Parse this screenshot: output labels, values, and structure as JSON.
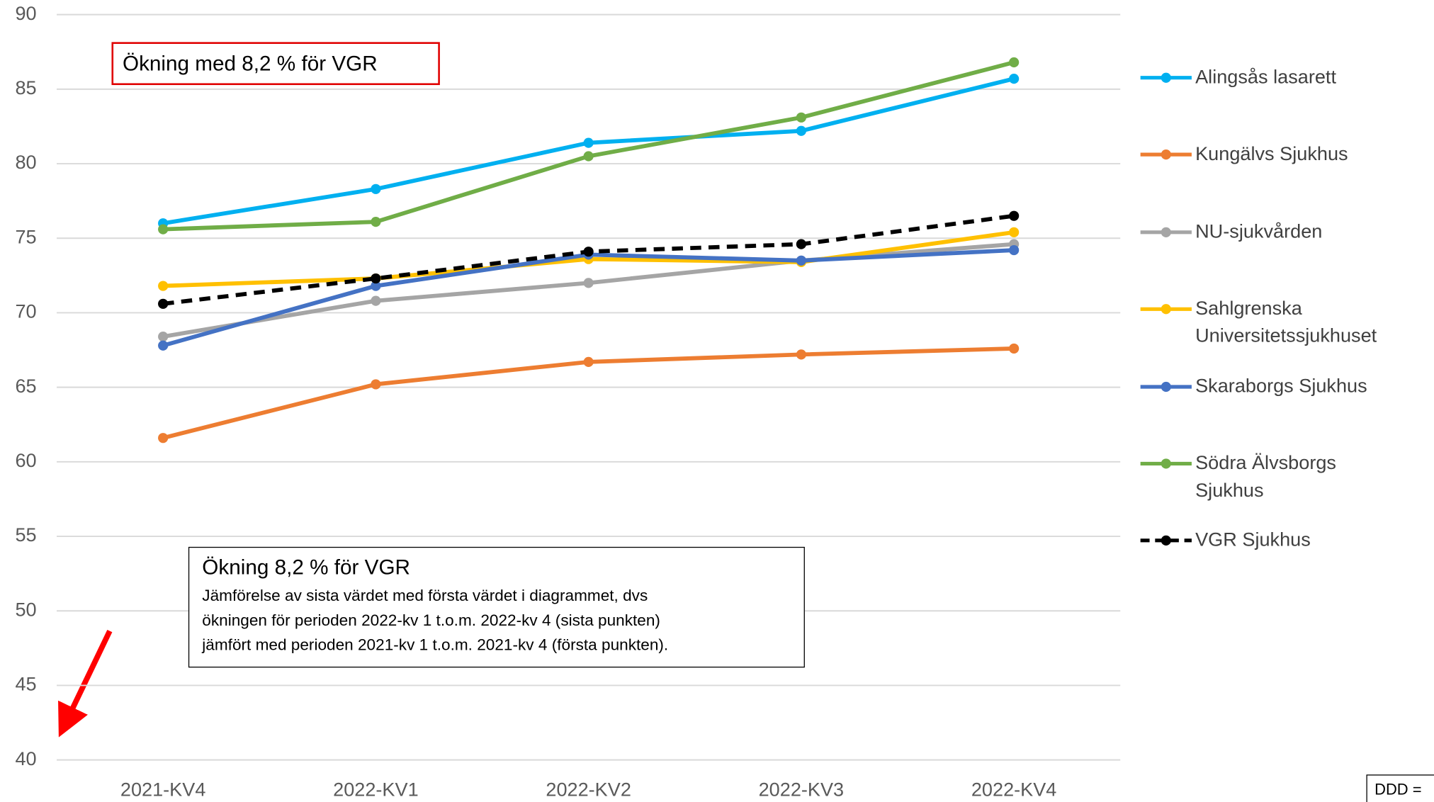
{
  "chart_data": {
    "type": "line",
    "categories": [
      "2021-KV4",
      "2022-KV1",
      "2022-KV2",
      "2022-KV3",
      "2022-KV4"
    ],
    "series": [
      {
        "name": "Alingsås lasarett",
        "color": "#00b0f0",
        "values": [
          76.0,
          78.3,
          81.4,
          82.2,
          85.7
        ]
      },
      {
        "name": "Kungälvs Sjukhus",
        "color": "#ed7d31",
        "values": [
          61.6,
          65.2,
          66.7,
          67.2,
          67.6
        ]
      },
      {
        "name": "NU-sjukvården",
        "color": "#a5a5a5",
        "values": [
          68.4,
          70.8,
          72.0,
          73.5,
          74.6
        ]
      },
      {
        "name": "Sahlgrenska Universitetssjukhuset",
        "color": "#ffc000",
        "values": [
          71.8,
          72.3,
          73.6,
          73.4,
          75.4
        ]
      },
      {
        "name": "Skaraborgs Sjukhus",
        "color": "#4472c4",
        "values": [
          67.8,
          71.8,
          73.9,
          73.5,
          74.2
        ]
      },
      {
        "name": "Södra Älvsborgs Sjukhus",
        "color": "#70ad47",
        "values": [
          75.6,
          76.1,
          80.5,
          83.1,
          86.8
        ]
      },
      {
        "name": "VGR Sjukhus",
        "color": "#000000",
        "dashed": true,
        "values": [
          70.6,
          72.3,
          74.1,
          74.6,
          76.5
        ]
      }
    ],
    "ylim": [
      40,
      90
    ],
    "yticks": [
      40,
      45,
      50,
      55,
      60,
      65,
      70,
      75,
      80,
      85,
      90
    ],
    "grid": true,
    "legend": "right",
    "annotations": {
      "highlight": "Ökning med 8,2 % för VGR",
      "box_title": "Ökning 8,2 % för VGR",
      "box_lines": [
        "Jämförelse av sista värdet med första värdet i diagrammet, dvs",
        "ökningen för perioden 2022-kv 1 t.o.m. 2022-kv 4 (sista punkten)",
        "jämfört med perioden 2021-kv 1 t.o.m. 2021-kv 4 (första punkten)."
      ],
      "footnote": "DDD ="
    }
  }
}
